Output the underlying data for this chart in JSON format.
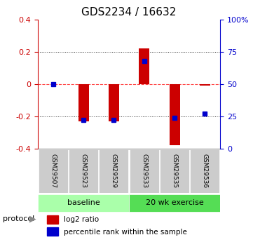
{
  "title": "GDS2234 / 16632",
  "samples": [
    "GSM29507",
    "GSM29523",
    "GSM29529",
    "GSM29533",
    "GSM29535",
    "GSM29536"
  ],
  "log2_ratio": [
    0.0,
    -0.23,
    -0.23,
    0.22,
    -0.38,
    -0.01
  ],
  "percentile_rank": [
    50,
    22,
    22,
    68,
    24,
    27
  ],
  "groups": [
    {
      "label": "baseline",
      "start": 0,
      "end": 3,
      "color": "#aaffaa"
    },
    {
      "label": "20 wk exercise",
      "start": 3,
      "end": 6,
      "color": "#55dd55"
    }
  ],
  "ylim_left": [
    -0.4,
    0.4
  ],
  "ylim_right": [
    0,
    100
  ],
  "bar_color": "#cc0000",
  "marker_color": "#0000cc",
  "zero_line_color": "#ff4444",
  "grid_color": "#333333",
  "title_fontsize": 11,
  "axis_label_color_left": "#cc0000",
  "axis_label_color_right": "#0000cc",
  "protocol_label": "protocol",
  "legend_log2": "log2 ratio",
  "legend_pct": "percentile rank within the sample"
}
